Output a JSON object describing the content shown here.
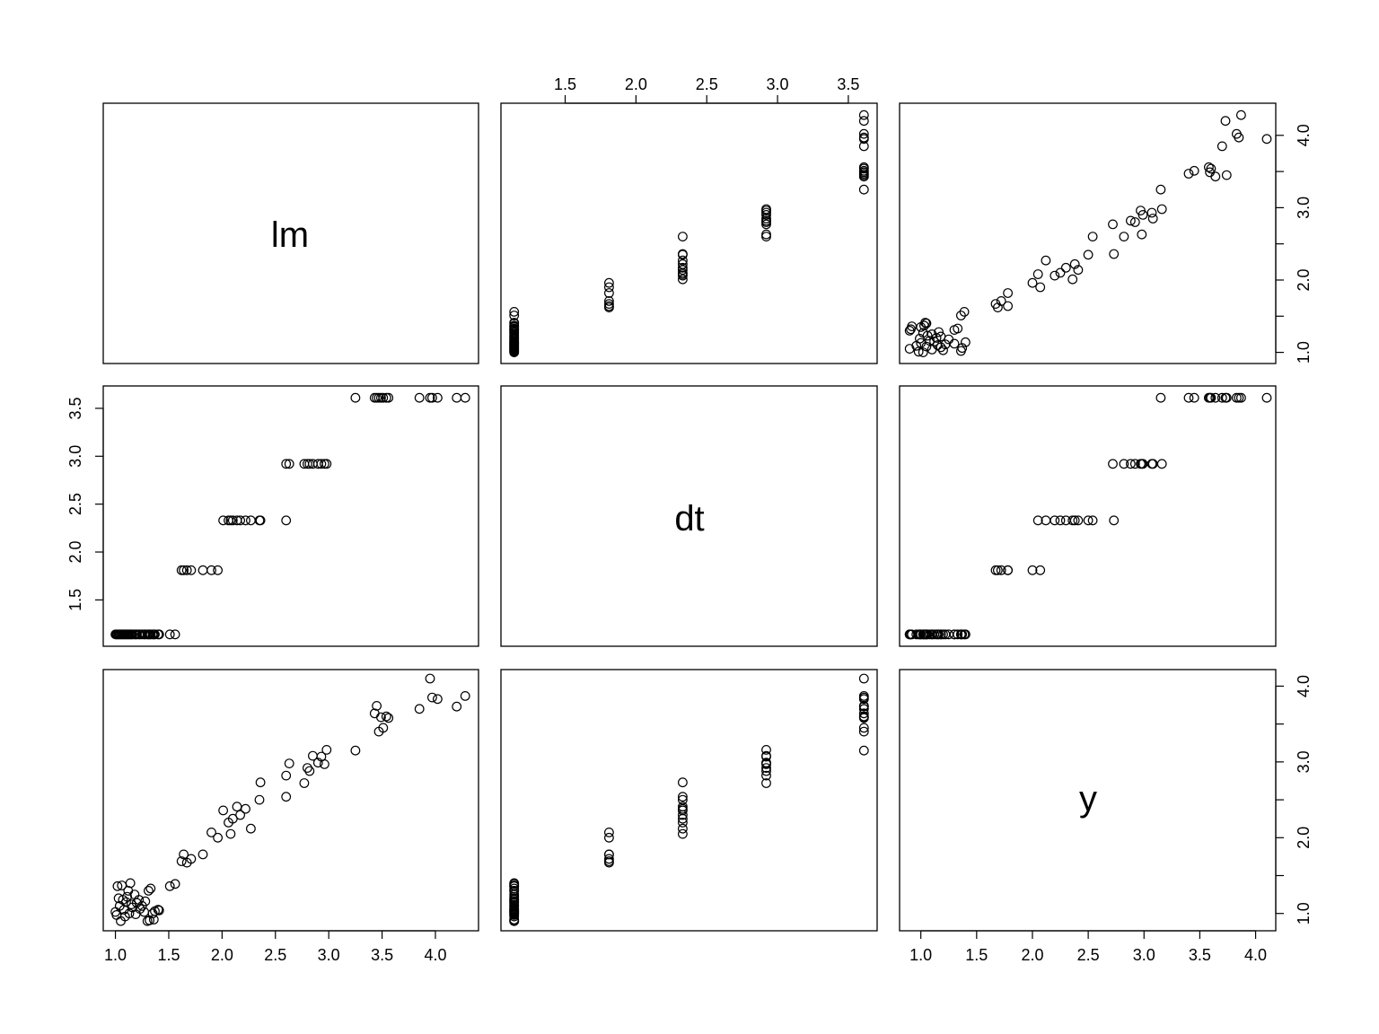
{
  "chart_data": {
    "type": "scatter",
    "kind": "pairs",
    "variables": [
      {
        "name": "lm",
        "axis_range": [
          0.97,
          4.32
        ],
        "ticks": [
          "1.0",
          "1.5",
          "2.0",
          "2.5",
          "3.0",
          "3.5",
          "4.0"
        ]
      },
      {
        "name": "dt",
        "axis_range": [
          1.11,
          3.64
        ],
        "ticks": [
          "1.5",
          "2.0",
          "2.5",
          "3.0",
          "3.5"
        ]
      },
      {
        "name": "y",
        "axis_range": [
          0.89,
          4.1
        ],
        "ticks": [
          "1.0",
          "1.5",
          "2.0",
          "2.5",
          "3.0",
          "3.5",
          "4.0"
        ]
      }
    ],
    "top_axis": {
      "panel": "1-2",
      "ticks": [
        "1.5",
        "2.0",
        "2.5",
        "3.0",
        "3.5"
      ]
    },
    "right_axis": [
      {
        "panel": "1-3",
        "ticks": [
          "1.0",
          "2.0",
          "3.0",
          "4.0"
        ]
      },
      {
        "panel": "3-3",
        "ticks": [
          "1.0",
          "2.0",
          "3.0",
          "4.0"
        ]
      }
    ],
    "left_axis": {
      "panel": "2-1",
      "ticks": [
        "1.5",
        "2.0",
        "2.5",
        "3.0",
        "3.5"
      ]
    },
    "bottom_axis": [
      {
        "panel": "3-1",
        "ticks": [
          "1.0",
          "1.5",
          "2.0",
          "2.5",
          "3.0",
          "3.5",
          "4.0"
        ]
      },
      {
        "panel": "3-3",
        "ticks": [
          "1.0",
          "1.5",
          "2.0",
          "2.5",
          "3.0",
          "3.5",
          "4.0"
        ]
      }
    ],
    "dt_levels": [
      1.14,
      1.81,
      2.33,
      2.92,
      3.61
    ],
    "observations": [
      {
        "lm": 1.0,
        "dt": 1.14,
        "y": 1.02
      },
      {
        "lm": 1.01,
        "dt": 1.14,
        "y": 0.98
      },
      {
        "lm": 1.02,
        "dt": 1.14,
        "y": 1.36
      },
      {
        "lm": 1.03,
        "dt": 1.14,
        "y": 1.2
      },
      {
        "lm": 1.04,
        "dt": 1.14,
        "y": 1.1
      },
      {
        "lm": 1.05,
        "dt": 1.14,
        "y": 0.9
      },
      {
        "lm": 1.06,
        "dt": 1.14,
        "y": 1.37
      },
      {
        "lm": 1.07,
        "dt": 1.14,
        "y": 1.18
      },
      {
        "lm": 1.08,
        "dt": 1.14,
        "y": 1.05
      },
      {
        "lm": 1.09,
        "dt": 1.14,
        "y": 0.96
      },
      {
        "lm": 1.1,
        "dt": 1.14,
        "y": 1.15
      },
      {
        "lm": 1.11,
        "dt": 1.14,
        "y": 1.22
      },
      {
        "lm": 1.12,
        "dt": 1.14,
        "y": 1.3
      },
      {
        "lm": 1.13,
        "dt": 1.14,
        "y": 1.0
      },
      {
        "lm": 1.14,
        "dt": 1.14,
        "y": 1.4
      },
      {
        "lm": 1.15,
        "dt": 1.14,
        "y": 1.12
      },
      {
        "lm": 1.16,
        "dt": 1.14,
        "y": 1.08
      },
      {
        "lm": 1.18,
        "dt": 1.14,
        "y": 1.25
      },
      {
        "lm": 1.19,
        "dt": 1.14,
        "y": 0.99
      },
      {
        "lm": 1.2,
        "dt": 1.14,
        "y": 1.14
      },
      {
        "lm": 1.22,
        "dt": 1.14,
        "y": 1.18
      },
      {
        "lm": 1.23,
        "dt": 1.14,
        "y": 1.06
      },
      {
        "lm": 1.25,
        "dt": 1.14,
        "y": 1.1
      },
      {
        "lm": 1.27,
        "dt": 1.14,
        "y": 1.02
      },
      {
        "lm": 1.28,
        "dt": 1.14,
        "y": 1.16
      },
      {
        "lm": 1.3,
        "dt": 1.14,
        "y": 0.9
      },
      {
        "lm": 1.31,
        "dt": 1.14,
        "y": 1.3
      },
      {
        "lm": 1.32,
        "dt": 1.14,
        "y": 0.91
      },
      {
        "lm": 1.33,
        "dt": 1.14,
        "y": 1.33
      },
      {
        "lm": 1.35,
        "dt": 1.14,
        "y": 1.0
      },
      {
        "lm": 1.36,
        "dt": 1.14,
        "y": 0.92
      },
      {
        "lm": 1.37,
        "dt": 1.14,
        "y": 1.03
      },
      {
        "lm": 1.4,
        "dt": 1.14,
        "y": 1.05
      },
      {
        "lm": 1.41,
        "dt": 1.14,
        "y": 1.04
      },
      {
        "lm": 1.51,
        "dt": 1.14,
        "y": 1.36
      },
      {
        "lm": 1.56,
        "dt": 1.14,
        "y": 1.39
      },
      {
        "lm": 1.62,
        "dt": 1.81,
        "y": 1.69
      },
      {
        "lm": 1.64,
        "dt": 1.81,
        "y": 1.78
      },
      {
        "lm": 1.67,
        "dt": 1.81,
        "y": 1.67
      },
      {
        "lm": 1.71,
        "dt": 1.81,
        "y": 1.72
      },
      {
        "lm": 1.82,
        "dt": 1.81,
        "y": 1.78
      },
      {
        "lm": 1.9,
        "dt": 1.81,
        "y": 2.07
      },
      {
        "lm": 1.96,
        "dt": 1.81,
        "y": 2.0
      },
      {
        "lm": 2.01,
        "dt": 2.33,
        "y": 2.36
      },
      {
        "lm": 2.06,
        "dt": 2.33,
        "y": 2.2
      },
      {
        "lm": 2.08,
        "dt": 2.33,
        "y": 2.05
      },
      {
        "lm": 2.1,
        "dt": 2.33,
        "y": 2.25
      },
      {
        "lm": 2.14,
        "dt": 2.33,
        "y": 2.41
      },
      {
        "lm": 2.17,
        "dt": 2.33,
        "y": 2.3
      },
      {
        "lm": 2.22,
        "dt": 2.33,
        "y": 2.38
      },
      {
        "lm": 2.27,
        "dt": 2.33,
        "y": 2.12
      },
      {
        "lm": 2.35,
        "dt": 2.33,
        "y": 2.5
      },
      {
        "lm": 2.36,
        "dt": 2.33,
        "y": 2.73
      },
      {
        "lm": 2.6,
        "dt": 2.33,
        "y": 2.54
      },
      {
        "lm": 2.6,
        "dt": 2.92,
        "y": 2.82
      },
      {
        "lm": 2.63,
        "dt": 2.92,
        "y": 2.98
      },
      {
        "lm": 2.77,
        "dt": 2.92,
        "y": 2.72
      },
      {
        "lm": 2.8,
        "dt": 2.92,
        "y": 2.92
      },
      {
        "lm": 2.82,
        "dt": 2.92,
        "y": 2.88
      },
      {
        "lm": 2.85,
        "dt": 2.92,
        "y": 3.08
      },
      {
        "lm": 2.9,
        "dt": 2.92,
        "y": 2.99
      },
      {
        "lm": 2.93,
        "dt": 2.92,
        "y": 3.07
      },
      {
        "lm": 2.96,
        "dt": 2.92,
        "y": 2.97
      },
      {
        "lm": 2.98,
        "dt": 2.92,
        "y": 3.16
      },
      {
        "lm": 3.25,
        "dt": 3.61,
        "y": 3.15
      },
      {
        "lm": 3.43,
        "dt": 3.61,
        "y": 3.64
      },
      {
        "lm": 3.45,
        "dt": 3.61,
        "y": 3.74
      },
      {
        "lm": 3.47,
        "dt": 3.61,
        "y": 3.4
      },
      {
        "lm": 3.49,
        "dt": 3.61,
        "y": 3.59
      },
      {
        "lm": 3.51,
        "dt": 3.61,
        "y": 3.45
      },
      {
        "lm": 3.54,
        "dt": 3.61,
        "y": 3.6
      },
      {
        "lm": 3.56,
        "dt": 3.61,
        "y": 3.58
      },
      {
        "lm": 3.85,
        "dt": 3.61,
        "y": 3.7
      },
      {
        "lm": 3.95,
        "dt": 3.61,
        "y": 4.1
      },
      {
        "lm": 3.97,
        "dt": 3.61,
        "y": 3.85
      },
      {
        "lm": 4.02,
        "dt": 3.61,
        "y": 3.83
      },
      {
        "lm": 4.2,
        "dt": 3.61,
        "y": 3.73
      },
      {
        "lm": 4.28,
        "dt": 3.61,
        "y": 3.87
      }
    ]
  }
}
